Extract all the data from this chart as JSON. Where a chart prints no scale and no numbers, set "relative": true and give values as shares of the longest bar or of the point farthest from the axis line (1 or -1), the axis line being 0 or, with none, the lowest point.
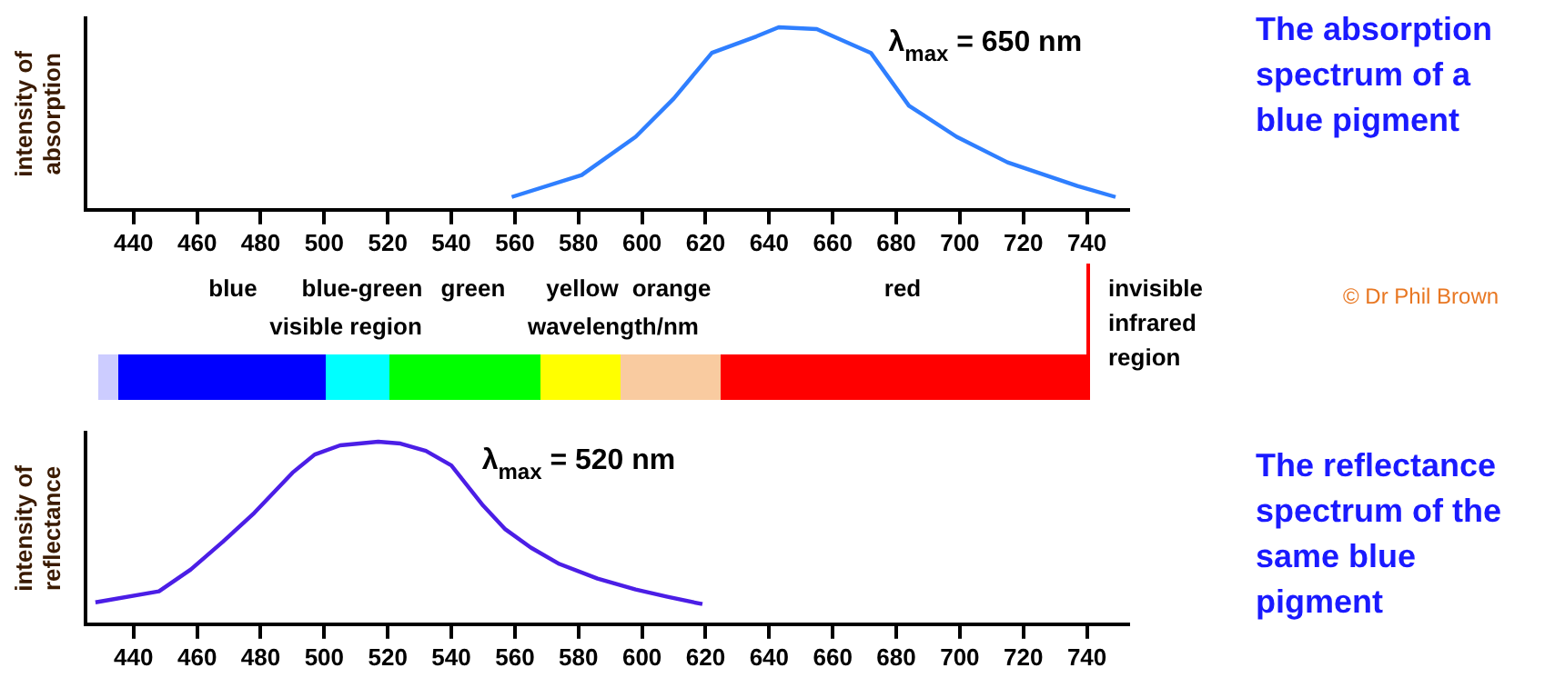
{
  "chart_data": [
    {
      "type": "line",
      "ylabel": "intensity of absorption",
      "relative": true,
      "marker": "none",
      "color": "#2f7fff",
      "x": [
        559,
        581,
        598,
        610,
        622,
        636,
        643,
        655,
        672,
        684,
        699,
        715,
        737,
        749
      ],
      "values": [
        0.07,
        0.19,
        0.4,
        0.61,
        0.86,
        0.95,
        1,
        0.99,
        0.86,
        0.57,
        0.4,
        0.26,
        0.13,
        0.07
      ],
      "xlim": [
        425,
        753
      ],
      "xticks": [
        440,
        460,
        480,
        500,
        520,
        540,
        560,
        580,
        600,
        620,
        640,
        660,
        680,
        700,
        720,
        740
      ],
      "annotations": [
        "λ$_{max}$ = 650 nm",
        "The absorption spectrum of a blue pigment"
      ]
    },
    {
      "type": "other",
      "annotations": [
        "blue",
        "blue-green",
        "green",
        "yellow",
        "orange",
        "red",
        "visible region",
        "wavelength/nm",
        "invisible infrared region",
        "© Dr Phil Brown"
      ]
    },
    {
      "type": "line",
      "ylabel": "intensity of reflectance",
      "relative": true,
      "marker": "none",
      "color": "#4b1ee6",
      "x": [
        428,
        448,
        458,
        468,
        478,
        490,
        497,
        505,
        517,
        524,
        532,
        540,
        550,
        557,
        565,
        574,
        586,
        598,
        608,
        619
      ],
      "values": [
        0.12,
        0.18,
        0.3,
        0.45,
        0.61,
        0.83,
        0.93,
        0.98,
        1,
        0.99,
        0.95,
        0.87,
        0.65,
        0.52,
        0.42,
        0.33,
        0.25,
        0.19,
        0.15,
        0.11
      ],
      "xlim": [
        425,
        753
      ],
      "xticks": [
        440,
        460,
        480,
        500,
        520,
        540,
        560,
        580,
        600,
        620,
        640,
        660,
        680,
        700,
        720,
        740
      ],
      "annotations": [
        "λ$_{max}$ = 520 nm",
        "The reflectance spectrum of the same blue pigment"
      ]
    }
  ]
}
